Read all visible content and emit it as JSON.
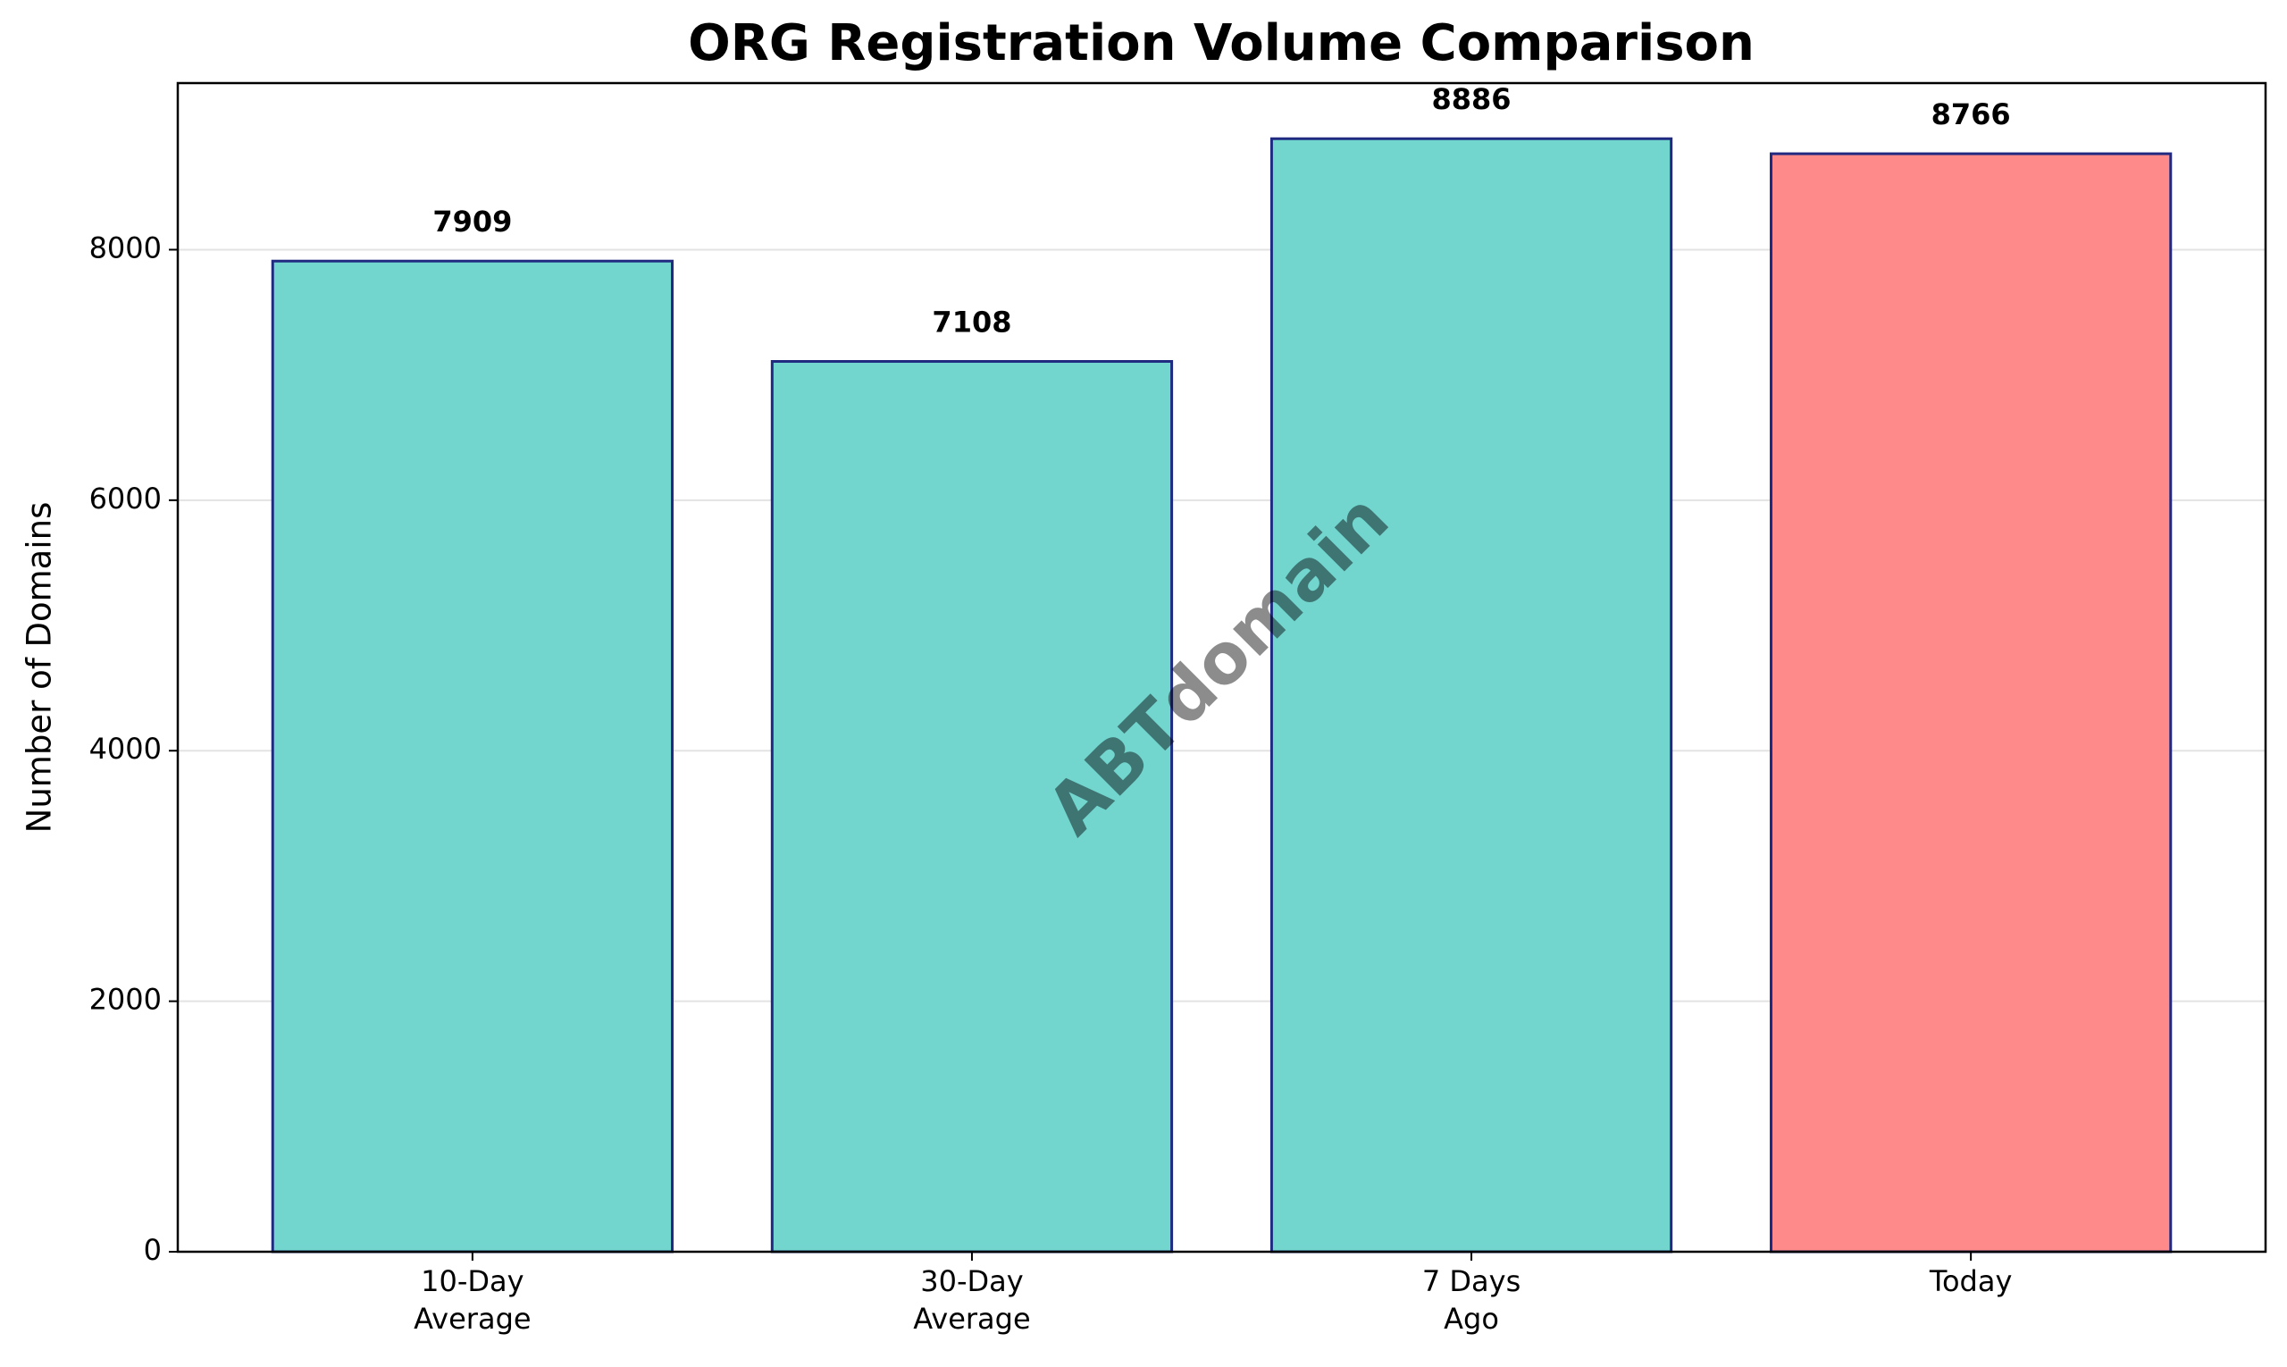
{
  "chart_data": {
    "type": "bar",
    "title": "ORG Registration Volume Comparison",
    "y_label": "Number of Domains",
    "watermark": "ABTdomain",
    "categories": [
      "10-Day\nAverage",
      "30-Day\nAverage",
      "7 Days\nAgo",
      "Today"
    ],
    "values": [
      7909,
      7108,
      8886,
      8766
    ],
    "colors": [
      "#72d6cf",
      "#72d6cf",
      "#72d6cf",
      "#ff8a8a"
    ],
    "edge_color": "#1f2a80",
    "ylim": [
      0,
      9330
    ],
    "yticks": [
      0,
      2000,
      4000,
      6000,
      8000
    ],
    "grid": true
  }
}
